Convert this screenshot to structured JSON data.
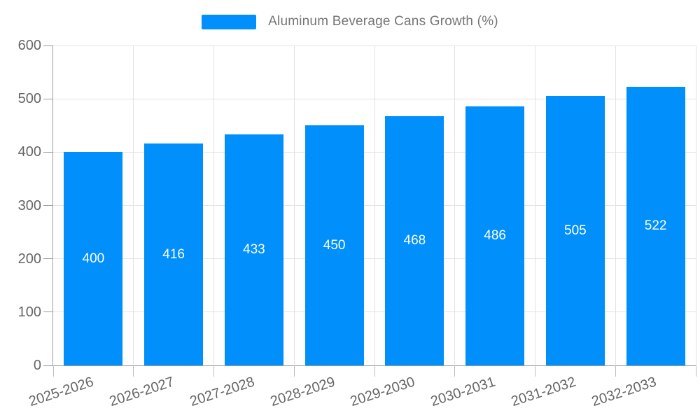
{
  "legend": {
    "label": "Aluminum Beverage Cans Growth (%)"
  },
  "chart_data": {
    "type": "bar",
    "title": "Aluminum Beverage Cans Growth (%)",
    "categories": [
      "2025-2026",
      "2026-2027",
      "2027-2028",
      "2028-2029",
      "2029-2030",
      "2030-2031",
      "2031-2032",
      "2032-2033"
    ],
    "values": [
      400,
      416,
      433,
      450,
      468,
      486,
      505,
      522
    ],
    "data_labels": [
      "400",
      "416",
      "433",
      "450",
      "468",
      "486",
      "505",
      "522"
    ],
    "xlabel": "",
    "ylabel": "",
    "ylim": [
      0,
      600
    ],
    "yticks": [
      0,
      100,
      200,
      300,
      400,
      500,
      600
    ],
    "grid": true,
    "legend_position": "top",
    "colors": {
      "bar": "#008FFB",
      "grid": "#e3e3e3",
      "axis_line": "#9b9b9b",
      "axis_tick": "#bdbdbd",
      "tick_label": "#666666",
      "legend_text": "#757575",
      "data_label": "#ffffff"
    }
  }
}
